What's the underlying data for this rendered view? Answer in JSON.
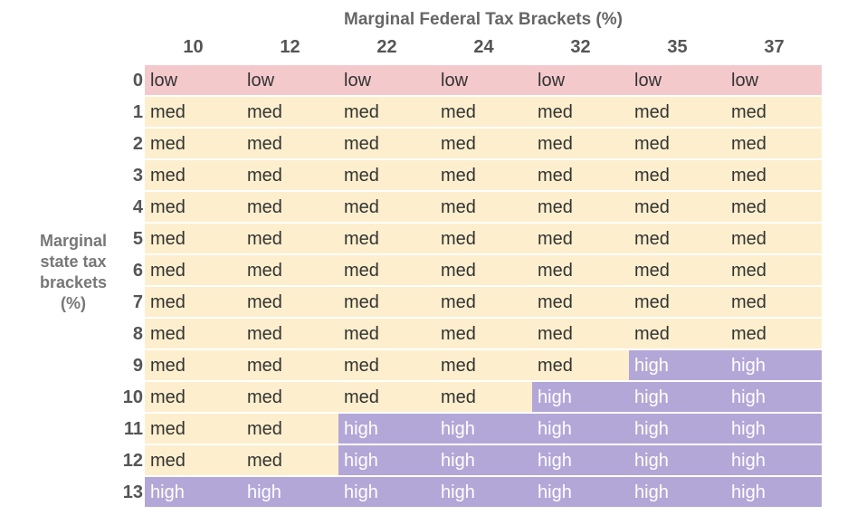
{
  "chart_data": {
    "type": "heatmap",
    "title": "",
    "xlabel": "Marginal Federal Tax Brackets (%)",
    "ylabel": "Marginal state tax brackets (%)",
    "x_categories": [
      "10",
      "12",
      "22",
      "24",
      "32",
      "35",
      "37"
    ],
    "y_categories": [
      "0",
      "1",
      "2",
      "3",
      "4",
      "5",
      "6",
      "7",
      "8",
      "9",
      "10",
      "11",
      "12",
      "13"
    ],
    "values": [
      [
        "low",
        "low",
        "low",
        "low",
        "low",
        "low",
        "low"
      ],
      [
        "med",
        "med",
        "med",
        "med",
        "med",
        "med",
        "med"
      ],
      [
        "med",
        "med",
        "med",
        "med",
        "med",
        "med",
        "med"
      ],
      [
        "med",
        "med",
        "med",
        "med",
        "med",
        "med",
        "med"
      ],
      [
        "med",
        "med",
        "med",
        "med",
        "med",
        "med",
        "med"
      ],
      [
        "med",
        "med",
        "med",
        "med",
        "med",
        "med",
        "med"
      ],
      [
        "med",
        "med",
        "med",
        "med",
        "med",
        "med",
        "med"
      ],
      [
        "med",
        "med",
        "med",
        "med",
        "med",
        "med",
        "med"
      ],
      [
        "med",
        "med",
        "med",
        "med",
        "med",
        "med",
        "med"
      ],
      [
        "med",
        "med",
        "med",
        "med",
        "med",
        "high",
        "high"
      ],
      [
        "med",
        "med",
        "med",
        "med",
        "high",
        "high",
        "high"
      ],
      [
        "med",
        "med",
        "high",
        "high",
        "high",
        "high",
        "high"
      ],
      [
        "med",
        "med",
        "high",
        "high",
        "high",
        "high",
        "high"
      ],
      [
        "high",
        "high",
        "high",
        "high",
        "high",
        "high",
        "high"
      ]
    ],
    "category_colors": {
      "low": "#f4c9cc",
      "med": "#fdefcd",
      "high": "#b3a7d7"
    },
    "grid": true,
    "legend": "none"
  }
}
